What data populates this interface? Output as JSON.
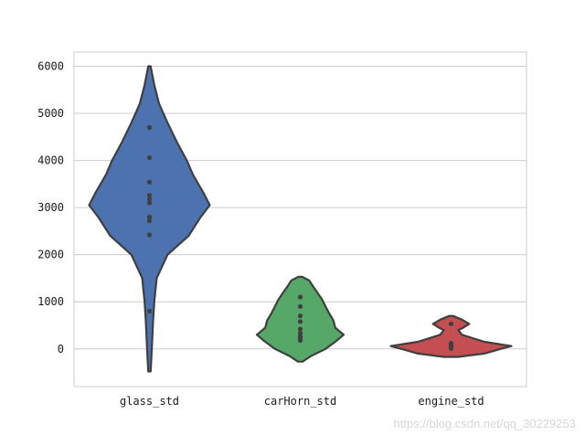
{
  "chart_data": {
    "type": "violin",
    "grid": true,
    "ylim": [
      -800,
      6300
    ],
    "yticks": [
      0,
      1000,
      2000,
      3000,
      4000,
      5000,
      6000
    ],
    "ytick_labels": [
      "0",
      "1000",
      "2000",
      "3000",
      "4000",
      "5000",
      "6000"
    ],
    "categories": [
      "glass_std",
      "carHorn_std",
      "engine_std"
    ],
    "series": [
      {
        "category": "glass_std",
        "color": "#4c72b0",
        "range": [
          -480,
          6000
        ],
        "points": [
          800,
          2420,
          2720,
          2800,
          3100,
          3180,
          3260,
          3540,
          4060,
          4700
        ],
        "density": [
          [
            -480,
            0.02
          ],
          [
            0,
            0.04
          ],
          [
            600,
            0.06
          ],
          [
            1000,
            0.08
          ],
          [
            1500,
            0.12
          ],
          [
            2000,
            0.3
          ],
          [
            2400,
            0.65
          ],
          [
            2800,
            0.85
          ],
          [
            3050,
            1.0
          ],
          [
            3300,
            0.9
          ],
          [
            3700,
            0.72
          ],
          [
            4000,
            0.62
          ],
          [
            4400,
            0.45
          ],
          [
            4800,
            0.3
          ],
          [
            5200,
            0.16
          ],
          [
            5600,
            0.08
          ],
          [
            6000,
            0.02
          ]
        ]
      },
      {
        "category": "carHorn_std",
        "color": "#55a868",
        "range": [
          -270,
          1530
        ],
        "points": [
          180,
          220,
          260,
          330,
          420,
          580,
          700,
          900,
          1100
        ],
        "density": [
          [
            -270,
            0.04
          ],
          [
            -150,
            0.18
          ],
          [
            0,
            0.42
          ],
          [
            150,
            0.58
          ],
          [
            300,
            0.72
          ],
          [
            450,
            0.58
          ],
          [
            600,
            0.55
          ],
          [
            750,
            0.48
          ],
          [
            900,
            0.42
          ],
          [
            1050,
            0.36
          ],
          [
            1200,
            0.28
          ],
          [
            1350,
            0.2
          ],
          [
            1450,
            0.15
          ],
          [
            1530,
            0.03
          ]
        ]
      },
      {
        "category": "engine_std",
        "color": "#c44e52",
        "range": [
          -170,
          700
        ],
        "points": [
          10,
          40,
          80,
          120,
          530
        ],
        "density": [
          [
            -170,
            0.12
          ],
          [
            -100,
            0.55
          ],
          [
            0,
            0.82
          ],
          [
            60,
            1.0
          ],
          [
            150,
            0.55
          ],
          [
            300,
            0.18
          ],
          [
            400,
            0.12
          ],
          [
            450,
            0.2
          ],
          [
            530,
            0.3
          ],
          [
            620,
            0.18
          ],
          [
            700,
            0.03
          ]
        ]
      }
    ]
  },
  "watermark": "https://blog.csdn.net/qq_30229253"
}
